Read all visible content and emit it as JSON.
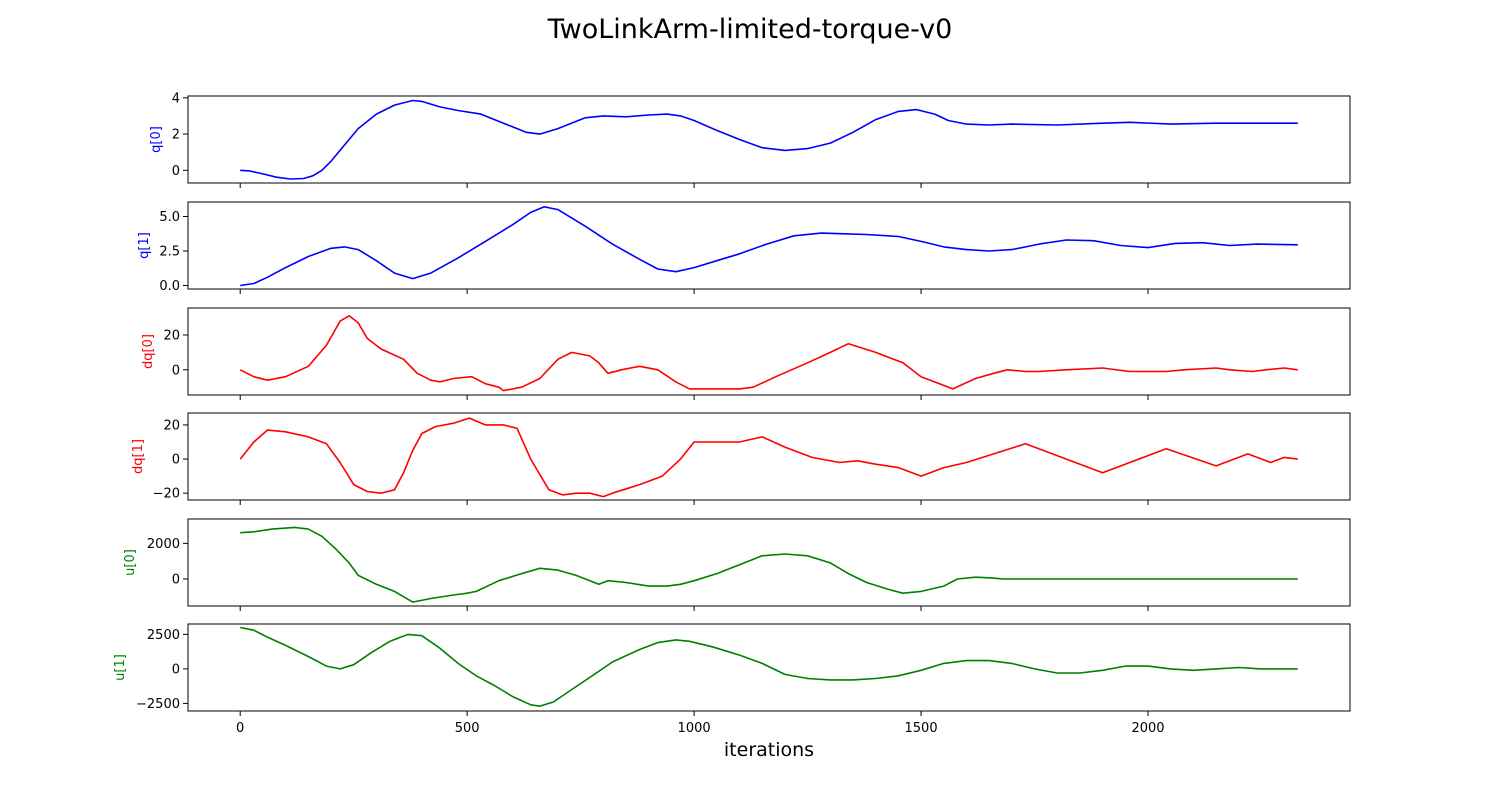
{
  "title": "TwoLinkArm-limited-torque-v0",
  "xlabel": "iterations",
  "chart_data": [
    {
      "type": "line",
      "ylabel": "q[0]",
      "color": "#0000ff",
      "xlim": [
        -115,
        2445
      ],
      "ylim": [
        -0.7,
        4.1
      ],
      "yticks": [
        0,
        2,
        4
      ],
      "yticklabels": [
        "0",
        "2",
        "4"
      ],
      "x": [
        0,
        20,
        50,
        80,
        110,
        140,
        160,
        180,
        200,
        230,
        260,
        300,
        340,
        380,
        400,
        440,
        480,
        530,
        580,
        630,
        660,
        700,
        760,
        800,
        850,
        900,
        940,
        970,
        1000,
        1050,
        1100,
        1150,
        1200,
        1250,
        1300,
        1350,
        1400,
        1450,
        1490,
        1530,
        1560,
        1600,
        1650,
        1700,
        1800,
        1900,
        1960,
        2050,
        2150,
        2250,
        2330
      ],
      "values": [
        0.0,
        -0.03,
        -0.2,
        -0.38,
        -0.48,
        -0.45,
        -0.3,
        0.0,
        0.5,
        1.4,
        2.3,
        3.1,
        3.6,
        3.85,
        3.8,
        3.5,
        3.3,
        3.1,
        2.6,
        2.1,
        2.0,
        2.3,
        2.9,
        3.0,
        2.95,
        3.05,
        3.1,
        3.0,
        2.75,
        2.2,
        1.7,
        1.25,
        1.1,
        1.2,
        1.5,
        2.1,
        2.8,
        3.25,
        3.35,
        3.1,
        2.75,
        2.55,
        2.5,
        2.55,
        2.5,
        2.6,
        2.65,
        2.55,
        2.6,
        2.6,
        2.6
      ]
    },
    {
      "type": "line",
      "ylabel": "q[1]",
      "color": "#0000ff",
      "xlim": [
        -115,
        2445
      ],
      "ylim": [
        -0.25,
        6.05
      ],
      "yticks": [
        0.0,
        2.5,
        5.0
      ],
      "yticklabels": [
        "0.0",
        "2.5",
        "5.0"
      ],
      "x": [
        0,
        30,
        60,
        100,
        150,
        200,
        230,
        260,
        300,
        340,
        380,
        420,
        480,
        540,
        600,
        640,
        670,
        700,
        760,
        820,
        880,
        920,
        960,
        1000,
        1050,
        1100,
        1160,
        1220,
        1280,
        1330,
        1380,
        1450,
        1500,
        1550,
        1600,
        1650,
        1700,
        1760,
        1820,
        1880,
        1940,
        2000,
        2060,
        2120,
        2180,
        2240,
        2330
      ],
      "values": [
        0.0,
        0.15,
        0.6,
        1.3,
        2.1,
        2.7,
        2.8,
        2.6,
        1.8,
        0.9,
        0.5,
        0.9,
        2.0,
        3.2,
        4.4,
        5.3,
        5.7,
        5.5,
        4.3,
        3.0,
        1.9,
        1.2,
        1.0,
        1.3,
        1.8,
        2.3,
        3.0,
        3.6,
        3.8,
        3.75,
        3.7,
        3.55,
        3.2,
        2.8,
        2.6,
        2.5,
        2.6,
        3.0,
        3.3,
        3.25,
        2.9,
        2.75,
        3.05,
        3.1,
        2.9,
        3.0,
        2.95
      ]
    },
    {
      "type": "line",
      "ylabel": "dq[0]",
      "color": "#ff0000",
      "xlim": [
        -115,
        2445
      ],
      "ylim": [
        -14.5,
        35.5
      ],
      "yticks": [
        0,
        20
      ],
      "yticklabels": [
        "0",
        "20"
      ],
      "x": [
        0,
        30,
        60,
        100,
        150,
        190,
        220,
        240,
        260,
        280,
        310,
        360,
        390,
        420,
        440,
        470,
        510,
        540,
        570,
        580,
        620,
        660,
        700,
        730,
        770,
        790,
        810,
        840,
        880,
        920,
        960,
        990,
        1050,
        1100,
        1130,
        1180,
        1250,
        1300,
        1340,
        1400,
        1460,
        1500,
        1570,
        1620,
        1660,
        1690,
        1730,
        1760,
        1820,
        1900,
        1960,
        2000,
        2040,
        2080,
        2150,
        2180,
        2230,
        2260,
        2300,
        2330
      ],
      "values": [
        0,
        -4,
        -6,
        -4,
        2,
        14,
        28,
        31,
        27,
        18,
        12,
        6,
        -2,
        -6,
        -7,
        -5,
        -4,
        -8,
        -10,
        -12,
        -10,
        -5,
        6,
        10,
        8,
        4,
        -2,
        0,
        2,
        0,
        -7,
        -11,
        -11,
        -11,
        -10,
        -4,
        4,
        10,
        15,
        10,
        4,
        -4,
        -11,
        -5,
        -2,
        0,
        -1,
        -1,
        0,
        1,
        -1,
        -1,
        -1,
        0,
        1,
        0,
        -1,
        0,
        1,
        0
      ]
    },
    {
      "type": "line",
      "ylabel": "dq[1]",
      "color": "#ff0000",
      "xlim": [
        -115,
        2445
      ],
      "ylim": [
        -24.0,
        27.0
      ],
      "yticks": [
        -20,
        0,
        20
      ],
      "yticklabels": [
        "−20",
        "0",
        "20"
      ],
      "x": [
        0,
        30,
        60,
        100,
        150,
        190,
        220,
        250,
        280,
        310,
        340,
        360,
        380,
        400,
        430,
        470,
        505,
        540,
        580,
        610,
        640,
        680,
        710,
        740,
        770,
        800,
        820,
        880,
        930,
        970,
        1000,
        1050,
        1100,
        1150,
        1200,
        1260,
        1320,
        1360,
        1400,
        1450,
        1500,
        1550,
        1600,
        1660,
        1730,
        1900,
        2040,
        2150,
        2220,
        2270,
        2300,
        2330
      ],
      "values": [
        0,
        10,
        17,
        16,
        13,
        9,
        -2,
        -15,
        -19,
        -20,
        -18,
        -8,
        5,
        15,
        19,
        21,
        24,
        20,
        20,
        18,
        0,
        -18,
        -21,
        -20,
        -20,
        -22,
        -20,
        -15,
        -10,
        0,
        10,
        10,
        10,
        13,
        7,
        1,
        -2,
        -1,
        -3,
        -5,
        -10,
        -5,
        -2,
        3,
        9,
        -8,
        6,
        -4,
        3,
        -2,
        1,
        0
      ]
    },
    {
      "type": "line",
      "ylabel": "u[0]",
      "color": "#008000",
      "xlim": [
        -115,
        2445
      ],
      "ylim": [
        -1520,
        3370
      ],
      "yticks": [
        0,
        2000
      ],
      "yticklabels": [
        "0",
        "2000"
      ],
      "x": [
        0,
        30,
        70,
        120,
        150,
        180,
        210,
        240,
        260,
        300,
        340,
        380,
        420,
        470,
        500,
        520,
        570,
        620,
        660,
        700,
        740,
        790,
        810,
        850,
        900,
        940,
        970,
        1000,
        1050,
        1100,
        1150,
        1200,
        1250,
        1300,
        1340,
        1380,
        1430,
        1460,
        1500,
        1550,
        1580,
        1620,
        1660,
        1680,
        2330
      ],
      "values": [
        2600,
        2650,
        2800,
        2900,
        2800,
        2400,
        1700,
        900,
        200,
        -300,
        -700,
        -1300,
        -1100,
        -900,
        -800,
        -700,
        -100,
        300,
        600,
        500,
        200,
        -300,
        -100,
        -200,
        -400,
        -400,
        -300,
        -100,
        300,
        800,
        1300,
        1400,
        1300,
        900,
        300,
        -200,
        -600,
        -800,
        -700,
        -400,
        0,
        100,
        50,
        0,
        0
      ]
    },
    {
      "type": "line",
      "ylabel": "u[1]",
      "color": "#008000",
      "xlim": [
        -115,
        2445
      ],
      "ylim": [
        -3050,
        3250
      ],
      "yticks": [
        -2500,
        0,
        2500
      ],
      "yticklabels": [
        "−2500",
        "0",
        "2500"
      ],
      "x": [
        0,
        30,
        60,
        100,
        150,
        190,
        220,
        250,
        290,
        330,
        370,
        400,
        440,
        480,
        520,
        560,
        600,
        640,
        660,
        690,
        730,
        780,
        820,
        880,
        920,
        960,
        990,
        1040,
        1100,
        1150,
        1200,
        1250,
        1300,
        1350,
        1400,
        1450,
        1500,
        1550,
        1600,
        1650,
        1700,
        1750,
        1800,
        1850,
        1900,
        1950,
        2000,
        2050,
        2100,
        2150,
        2200,
        2250,
        2300,
        2330
      ],
      "values": [
        3000,
        2800,
        2300,
        1700,
        900,
        200,
        0,
        300,
        1200,
        2000,
        2500,
        2400,
        1500,
        400,
        -500,
        -1200,
        -2000,
        -2600,
        -2700,
        -2400,
        -1500,
        -400,
        500,
        1400,
        1900,
        2100,
        2000,
        1600,
        1000,
        400,
        -400,
        -700,
        -800,
        -800,
        -700,
        -500,
        -100,
        400,
        600,
        600,
        400,
        0,
        -300,
        -300,
        -100,
        200,
        200,
        0,
        -100,
        0,
        100,
        0,
        0,
        0
      ]
    }
  ],
  "xaxis": {
    "ticks": [
      0,
      500,
      1000,
      1500,
      2000
    ],
    "ticklabels": [
      "0",
      "500",
      "1000",
      "1500",
      "2000"
    ]
  }
}
